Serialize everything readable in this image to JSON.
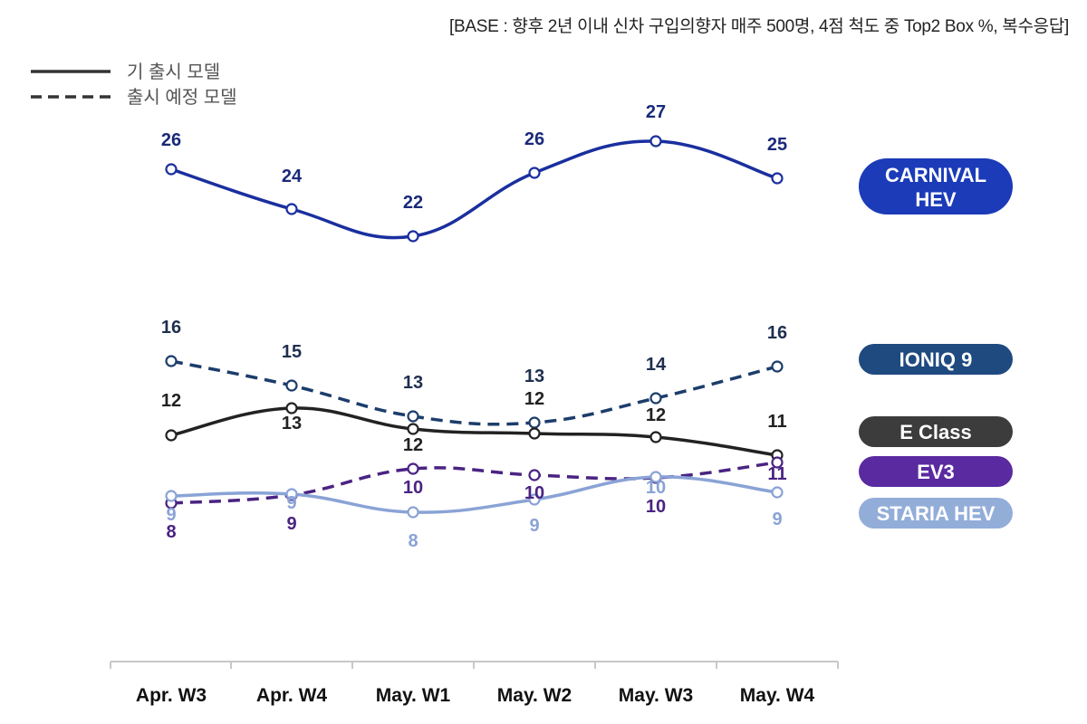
{
  "chart_data": {
    "type": "line",
    "note": "[BASE : 향후 2년 이내 신차 구입의향자 매주 500명, 4점 척도 중 Top2 Box %, 복수응답]",
    "categories": [
      "Apr. W3",
      "Apr. W4",
      "May. W1",
      "May. W2",
      "May. W3",
      "May. W4"
    ],
    "legend": [
      {
        "label": "기 출시 모델",
        "style": "solid"
      },
      {
        "label": "출시 예정 모델",
        "style": "dashed"
      }
    ],
    "series": [
      {
        "name": "CARNIVAL HEV",
        "style": "solid",
        "color": "#1a2f9e",
        "values": [
          26,
          24,
          22,
          26,
          27,
          25
        ]
      },
      {
        "name": "IONIQ 9",
        "style": "dashed",
        "color": "#1c3d6b",
        "values": [
          16,
          15,
          13,
          13,
          14,
          16
        ]
      },
      {
        "name": "E Class",
        "style": "solid",
        "color": "#222222",
        "values": [
          12,
          13,
          12,
          12,
          12,
          11
        ]
      },
      {
        "name": "EV3",
        "style": "dashed",
        "color": "#4a2382",
        "values": [
          8,
          9,
          10,
          10,
          10,
          11
        ]
      },
      {
        "name": "STARIA HEV",
        "style": "solid",
        "color": "#8aa3d6",
        "values": [
          9,
          9,
          8,
          9,
          10,
          9
        ]
      }
    ]
  },
  "colors": {
    "carnival_badge": "#1b3bb8",
    "ioniq_badge": "#1f4a80",
    "eclass_badge": "#3c3c3c",
    "ev3_badge": "#5a2aa0",
    "staria_badge": "#93add9",
    "axis": "#c8c8c8"
  }
}
